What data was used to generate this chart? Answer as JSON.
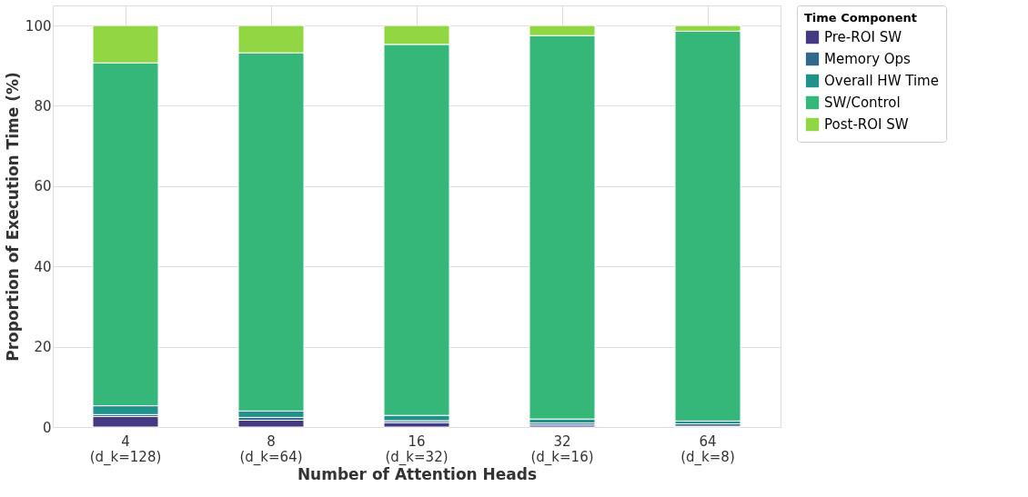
{
  "chart_data": {
    "type": "bar",
    "stacked": true,
    "xlabel": "Number of Attention Heads",
    "ylabel": "Proportion of Execution Time (%)",
    "legend_title": "Time Component",
    "categories": [
      "4\n(d_k=128)",
      "8\n(d_k=64)",
      "16\n(d_k=32)",
      "32\n(d_k=16)",
      "64\n(d_k=8)"
    ],
    "series": [
      {
        "name": "Pre-ROI SW",
        "color": "#443983",
        "values": [
          2.6,
          1.7,
          1.1,
          0.5,
          0.2
        ]
      },
      {
        "name": "Memory Ops",
        "color": "#31688e",
        "values": [
          0.5,
          0.7,
          0.5,
          0.5,
          0.6
        ]
      },
      {
        "name": "Overall HW Time",
        "color": "#21918c",
        "values": [
          2.2,
          1.6,
          1.3,
          1.0,
          0.7
        ]
      },
      {
        "name": "SW/Control",
        "color": "#35b779",
        "values": [
          85.4,
          89.2,
          92.4,
          95.5,
          97.1
        ]
      },
      {
        "name": "Post-ROI SW",
        "color": "#90d743",
        "values": [
          9.3,
          6.8,
          4.7,
          2.5,
          1.4
        ]
      }
    ],
    "ylim": [
      0,
      105
    ],
    "yticks": [
      0,
      20,
      40,
      60,
      80,
      100
    ],
    "grid": true,
    "legend": "top right"
  }
}
